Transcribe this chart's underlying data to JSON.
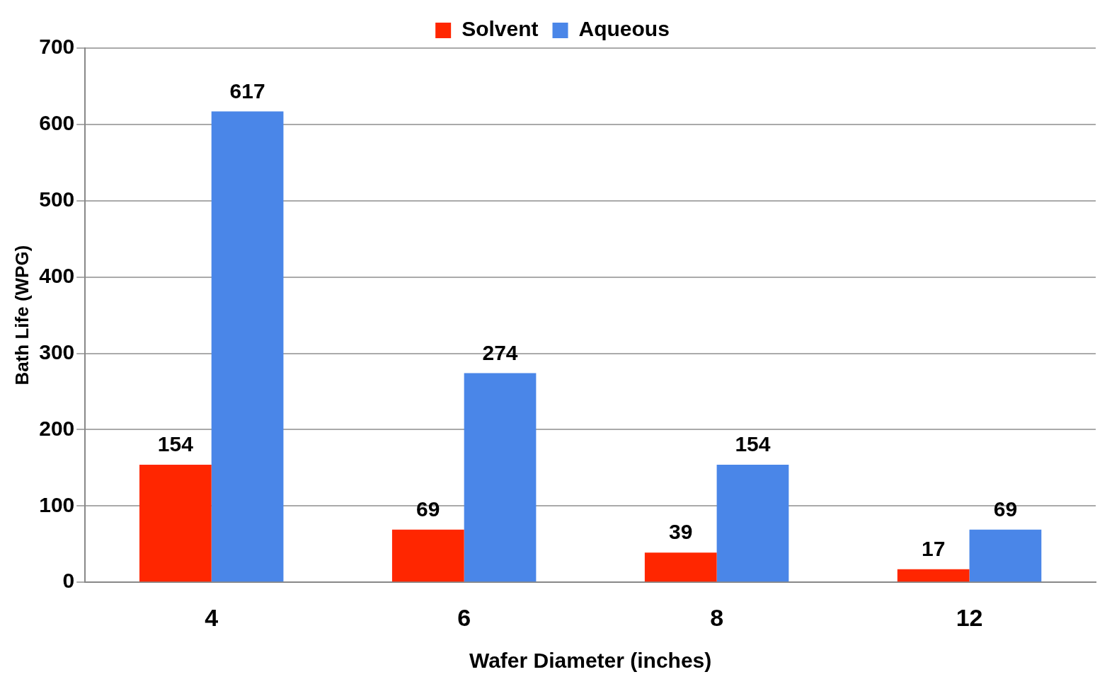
{
  "chart_data": {
    "type": "bar",
    "xlabel": "Wafer Diameter (inches)",
    "ylabel": "Bath Life (WPG)",
    "categories": [
      "4",
      "6",
      "8",
      "12"
    ],
    "series": [
      {
        "name": "Solvent",
        "color": "#ff2600",
        "values": [
          154,
          69,
          39,
          17
        ]
      },
      {
        "name": "Aqueous",
        "color": "#4a86e8",
        "values": [
          617,
          274,
          154,
          69
        ]
      }
    ],
    "ylim": [
      0,
      700
    ],
    "yticks": [
      0,
      100,
      200,
      300,
      400,
      500,
      600,
      700
    ],
    "grid": "y",
    "legend": "top",
    "data_labels": true
  }
}
